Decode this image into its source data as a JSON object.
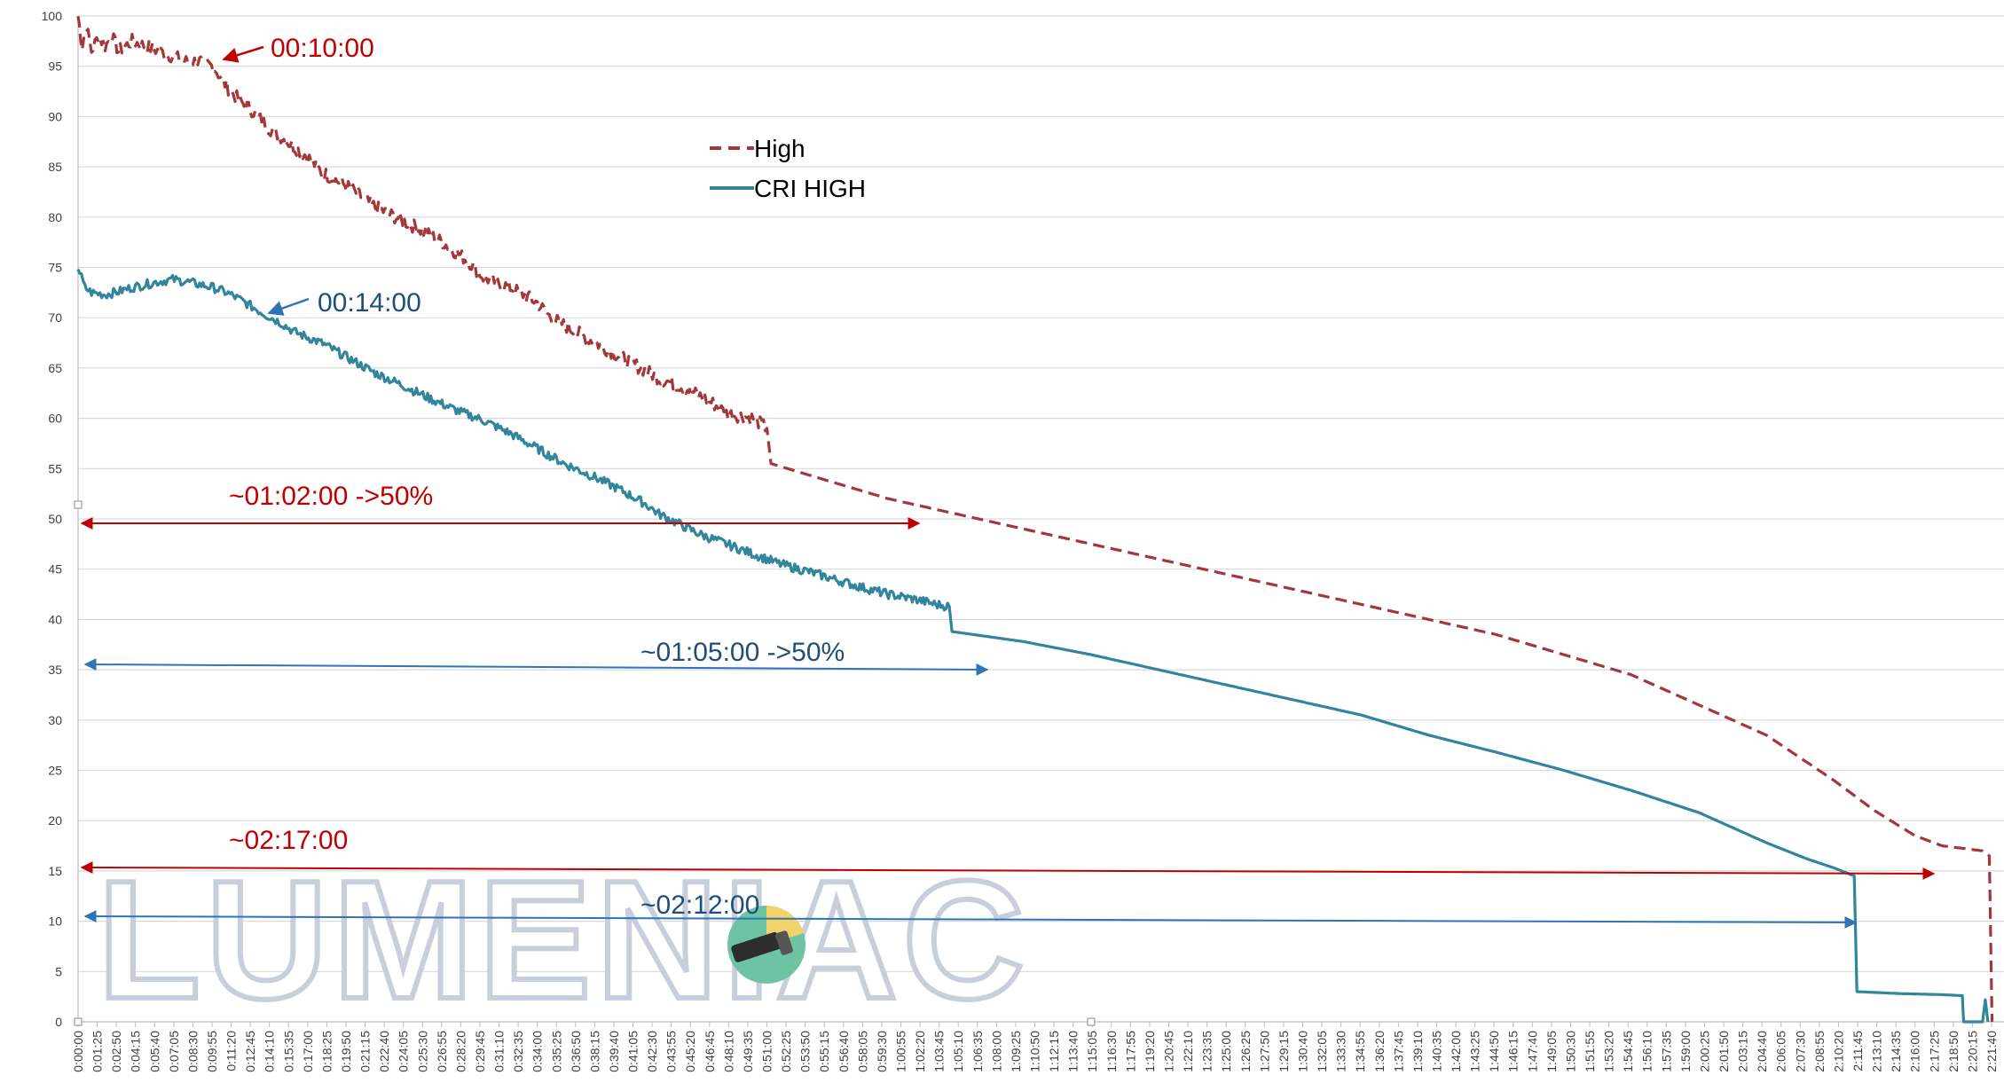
{
  "chart_data": {
    "type": "line",
    "title": "",
    "xlabel": "",
    "ylabel": "",
    "ylim": [
      0,
      100
    ],
    "y_ticks": [
      0,
      5,
      10,
      15,
      20,
      25,
      30,
      35,
      40,
      45,
      50,
      55,
      60,
      65,
      70,
      75,
      80,
      85,
      90,
      95,
      100
    ],
    "x_tick_labels": [
      "0:00:00",
      "0:01:25",
      "0:02:50",
      "0:04:15",
      "0:05:40",
      "0:07:05",
      "0:08:30",
      "0:09:55",
      "0:11:20",
      "0:12:45",
      "0:14:10",
      "0:15:35",
      "0:17:00",
      "0:18:25",
      "0:19:50",
      "0:21:15",
      "0:22:40",
      "0:24:05",
      "0:25:30",
      "0:26:55",
      "0:28:20",
      "0:29:45",
      "0:31:10",
      "0:32:35",
      "0:34:00",
      "0:35:25",
      "0:36:50",
      "0:38:15",
      "0:39:40",
      "0:41:05",
      "0:42:30",
      "0:43:55",
      "0:45:20",
      "0:46:45",
      "0:48:10",
      "0:49:35",
      "0:51:00",
      "0:52:25",
      "0:53:50",
      "0:55:15",
      "0:56:40",
      "0:58:05",
      "0:59:30",
      "1:00:55",
      "1:02:20",
      "1:03:45",
      "1:05:10",
      "1:06:35",
      "1:08:00",
      "1:09:25",
      "1:10:50",
      "1:12:15",
      "1:13:40",
      "1:15:05",
      "1:16:30",
      "1:17:55",
      "1:19:20",
      "1:20:45",
      "1:22:10",
      "1:23:35",
      "1:25:00",
      "1:26:25",
      "1:27:50",
      "1:29:15",
      "1:30:40",
      "1:32:05",
      "1:33:30",
      "1:34:55",
      "1:36:20",
      "1:37:45",
      "1:39:10",
      "1:40:35",
      "1:42:00",
      "1:43:25",
      "1:44:50",
      "1:46:15",
      "1:47:40",
      "1:49:05",
      "1:50:30",
      "1:51:55",
      "1:53:20",
      "1:54:45",
      "1:56:10",
      "1:57:35",
      "1:59:00",
      "2:00:25",
      "2:01:50",
      "2:03:15",
      "2:04:40",
      "2:06:05",
      "2:07:30",
      "2:08:55",
      "2:10:20",
      "2:11:45",
      "2:13:10",
      "2:14:35",
      "2:16:00",
      "2:17:25",
      "2:18:50",
      "2:20:15",
      "2:21:40"
    ],
    "x_tick_minutes": [
      0,
      1.417,
      2.833,
      4.25,
      5.667,
      7.083,
      8.5,
      9.917,
      11.333,
      12.75,
      14.167,
      15.583,
      17,
      18.417,
      19.833,
      21.25,
      22.667,
      24.083,
      25.5,
      26.917,
      28.333,
      29.75,
      31.167,
      32.583,
      34,
      35.417,
      36.833,
      38.25,
      39.667,
      41.083,
      42.5,
      43.917,
      45.333,
      46.75,
      48.167,
      49.583,
      51,
      52.417,
      53.833,
      55.25,
      56.667,
      58.083,
      59.5,
      60.917,
      62.333,
      63.75,
      65.167,
      66.583,
      68,
      69.417,
      70.833,
      72.25,
      73.667,
      75.083,
      76.5,
      77.917,
      79.333,
      80.75,
      82.167,
      83.583,
      85,
      86.417,
      87.833,
      89.25,
      90.667,
      92.083,
      93.5,
      94.917,
      96.333,
      97.75,
      99.167,
      100.583,
      102,
      103.417,
      104.833,
      106.25,
      107.667,
      109.083,
      110.5,
      111.917,
      113.333,
      114.75,
      116.167,
      117.583,
      119,
      120.417,
      121.833,
      123.25,
      124.667,
      126.083,
      127.5,
      128.917,
      130.333,
      131.75,
      133.167,
      134.583,
      136,
      137.417,
      138.833,
      140.25,
      141.667
    ],
    "x_range_minutes": [
      0,
      141.667
    ],
    "grid": true,
    "legend_position": "top-center",
    "series": [
      {
        "name": "High",
        "color": "#a3373a",
        "style": "dashed",
        "points": [
          [
            0,
            100
          ],
          [
            0.3,
            97
          ],
          [
            0.6,
            99
          ],
          [
            1,
            96.5
          ],
          [
            1.5,
            98
          ],
          [
            2,
            97
          ],
          [
            2.5,
            98
          ],
          [
            3,
            96.5
          ],
          [
            4,
            97.5
          ],
          [
            5,
            97
          ],
          [
            6,
            96.5
          ],
          [
            7,
            96
          ],
          [
            8,
            95.5
          ],
          [
            9,
            95.5
          ],
          [
            10,
            95
          ],
          [
            11,
            93
          ],
          [
            12,
            91.5
          ],
          [
            13,
            90.5
          ],
          [
            14,
            89
          ],
          [
            15,
            88
          ],
          [
            17,
            86
          ],
          [
            18,
            84.5
          ],
          [
            20,
            83
          ],
          [
            22,
            81
          ],
          [
            25,
            79
          ],
          [
            27,
            77.5
          ],
          [
            29,
            75.5
          ],
          [
            30,
            74
          ],
          [
            32,
            73
          ],
          [
            34,
            71.5
          ],
          [
            35,
            70
          ],
          [
            37,
            68.5
          ],
          [
            39,
            67
          ],
          [
            41,
            65.5
          ],
          [
            43,
            64
          ],
          [
            45,
            63
          ],
          [
            47,
            61.5
          ],
          [
            48,
            60.5
          ],
          [
            50,
            60
          ],
          [
            51,
            59
          ],
          [
            51.3,
            55.5
          ],
          [
            55,
            54
          ],
          [
            60,
            52
          ],
          [
            65,
            50.5
          ],
          [
            70,
            49
          ],
          [
            75,
            47.5
          ],
          [
            80,
            46
          ],
          [
            85,
            44.5
          ],
          [
            90,
            43
          ],
          [
            95,
            41.5
          ],
          [
            100,
            40
          ],
          [
            105,
            38.5
          ],
          [
            110,
            36.5
          ],
          [
            115,
            34.5
          ],
          [
            120,
            31.5
          ],
          [
            125,
            28.5
          ],
          [
            130,
            24
          ],
          [
            133,
            21
          ],
          [
            136,
            18.5
          ],
          [
            138,
            17.5
          ],
          [
            141,
            17
          ],
          [
            141.5,
            16.5
          ],
          [
            141.7,
            0
          ]
        ]
      },
      {
        "name": "CRI HIGH",
        "color": "#31859c",
        "style": "solid",
        "points": [
          [
            0,
            75
          ],
          [
            0.5,
            73
          ],
          [
            1,
            72.5
          ],
          [
            2,
            72.3
          ],
          [
            3,
            72.6
          ],
          [
            4,
            73
          ],
          [
            5,
            73.3
          ],
          [
            6,
            73.6
          ],
          [
            7,
            73.8
          ],
          [
            8,
            73.6
          ],
          [
            9,
            73.3
          ],
          [
            10,
            73
          ],
          [
            11,
            72.5
          ],
          [
            12,
            71.8
          ],
          [
            13,
            71
          ],
          [
            14,
            70.2
          ],
          [
            15,
            69.5
          ],
          [
            16,
            68.6
          ],
          [
            18,
            67.5
          ],
          [
            20,
            66
          ],
          [
            22,
            64.5
          ],
          [
            24,
            63.3
          ],
          [
            26,
            62
          ],
          [
            28,
            60.8
          ],
          [
            30,
            59.8
          ],
          [
            32,
            58.5
          ],
          [
            34,
            57
          ],
          [
            36,
            55.5
          ],
          [
            38,
            54.3
          ],
          [
            40,
            53
          ],
          [
            42,
            51.5
          ],
          [
            43,
            50.5
          ],
          [
            44.5,
            49.5
          ],
          [
            46,
            48.5
          ],
          [
            48,
            47.5
          ],
          [
            50,
            46.5
          ],
          [
            52,
            45.5
          ],
          [
            54,
            44.8
          ],
          [
            56,
            44
          ],
          [
            58,
            43.2
          ],
          [
            60,
            42.5
          ],
          [
            62,
            42
          ],
          [
            63.5,
            41.5
          ],
          [
            64.5,
            41.3
          ],
          [
            64.7,
            38.8
          ],
          [
            70,
            37.8
          ],
          [
            75,
            36.5
          ],
          [
            80,
            35
          ],
          [
            85,
            33.5
          ],
          [
            90,
            32
          ],
          [
            95,
            30.5
          ],
          [
            100,
            28.5
          ],
          [
            105,
            26.8
          ],
          [
            110,
            25
          ],
          [
            115,
            23
          ],
          [
            120,
            20.8
          ],
          [
            125,
            17.8
          ],
          [
            128,
            16.2
          ],
          [
            130,
            15.3
          ],
          [
            131.5,
            14.5
          ],
          [
            131.7,
            3
          ],
          [
            135,
            2.8
          ],
          [
            138,
            2.7
          ],
          [
            139.5,
            2.6
          ],
          [
            139.6,
            0
          ],
          [
            141,
            0
          ],
          [
            141.2,
            2.2
          ],
          [
            141.4,
            0
          ]
        ]
      }
    ],
    "annotations": [
      {
        "text": "00:10:00",
        "color": "#c00000"
      },
      {
        "text": "00:14:00",
        "color": "#1f4e79"
      },
      {
        "text": "~01:02:00 ->50%",
        "color": "#c00000"
      },
      {
        "text": "~01:05:00 ->50%",
        "color": "#1f4e79"
      },
      {
        "text": "~02:17:00",
        "color": "#c00000"
      },
      {
        "text": "~02:12:00",
        "color": "#1f4e79"
      }
    ],
    "watermark": {
      "text": "LUMENIAC"
    }
  }
}
